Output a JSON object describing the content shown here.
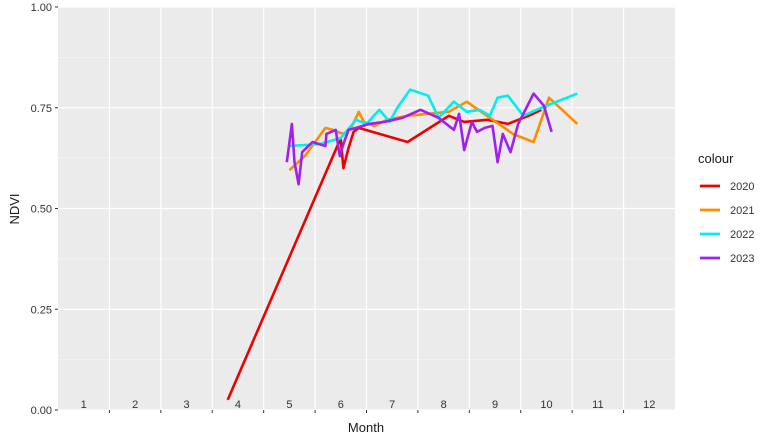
{
  "chart_data": {
    "type": "line",
    "xlabel": "Month",
    "ylabel": "NDVI",
    "xlim": [
      0.5,
      12.5
    ],
    "ylim": [
      0,
      1
    ],
    "yticks": [
      "0.00",
      "0.25",
      "0.50",
      "0.75",
      "1.00"
    ],
    "yticks_values": [
      0,
      0.25,
      0.5,
      0.75,
      1
    ],
    "xtick_labels": [
      "1",
      "2",
      "3",
      "4",
      "5",
      "6",
      "7",
      "8",
      "9",
      "10",
      "11",
      "12"
    ],
    "grid": true,
    "legend_title": "colour",
    "legend_position": "right",
    "series": [
      {
        "name": "2020",
        "color": "#ee0000",
        "x": [
          3.8,
          5.95,
          6.0,
          6.05,
          6.15,
          6.25,
          6.35,
          7.3,
          8.1,
          8.4,
          8.85,
          9.25,
          9.65,
          9.9
        ],
        "y": [
          0.025,
          0.66,
          0.67,
          0.6,
          0.65,
          0.69,
          0.7,
          0.665,
          0.73,
          0.715,
          0.72,
          0.71,
          0.73,
          0.745
        ]
      },
      {
        "name": "2021",
        "color": "#ff8c00",
        "x": [
          5.0,
          5.3,
          5.7,
          5.85,
          6.05,
          6.2,
          6.35,
          6.45,
          6.65,
          6.9,
          7.3,
          7.7,
          8.1,
          8.45,
          8.9,
          9.35,
          9.75,
          10.05,
          10.6
        ],
        "y": [
          0.595,
          0.63,
          0.7,
          0.695,
          0.685,
          0.7,
          0.74,
          0.715,
          0.705,
          0.72,
          0.73,
          0.735,
          0.74,
          0.765,
          0.725,
          0.685,
          0.665,
          0.775,
          0.71
        ]
      },
      {
        "name": "2022",
        "color": "#00eeee",
        "x": [
          5.0,
          5.6,
          6.0,
          6.3,
          6.5,
          6.75,
          6.95,
          7.1,
          7.35,
          7.7,
          7.9,
          8.2,
          8.45,
          8.7,
          8.9,
          9.05,
          9.25,
          9.55,
          9.9,
          10.6
        ],
        "y": [
          0.655,
          0.66,
          0.675,
          0.72,
          0.71,
          0.745,
          0.715,
          0.75,
          0.795,
          0.78,
          0.725,
          0.765,
          0.74,
          0.745,
          0.73,
          0.775,
          0.78,
          0.73,
          0.75,
          0.785
        ]
      },
      {
        "name": "2023",
        "color": "#a020f0",
        "x": [
          4.95,
          5.05,
          5.1,
          5.18,
          5.25,
          5.45,
          5.7,
          5.72,
          5.9,
          5.98,
          6.05,
          6.15,
          6.3,
          6.55,
          6.85,
          7.2,
          7.55,
          7.9,
          8.2,
          8.3,
          8.4,
          8.55,
          8.65,
          8.8,
          8.95,
          9.05,
          9.15,
          9.3,
          9.45,
          9.75,
          9.95,
          10.1
        ],
        "y": [
          0.615,
          0.71,
          0.615,
          0.56,
          0.64,
          0.665,
          0.655,
          0.685,
          0.695,
          0.63,
          0.66,
          0.695,
          0.7,
          0.71,
          0.715,
          0.725,
          0.745,
          0.725,
          0.695,
          0.735,
          0.645,
          0.715,
          0.69,
          0.7,
          0.705,
          0.615,
          0.685,
          0.64,
          0.71,
          0.785,
          0.755,
          0.69
        ]
      }
    ]
  }
}
